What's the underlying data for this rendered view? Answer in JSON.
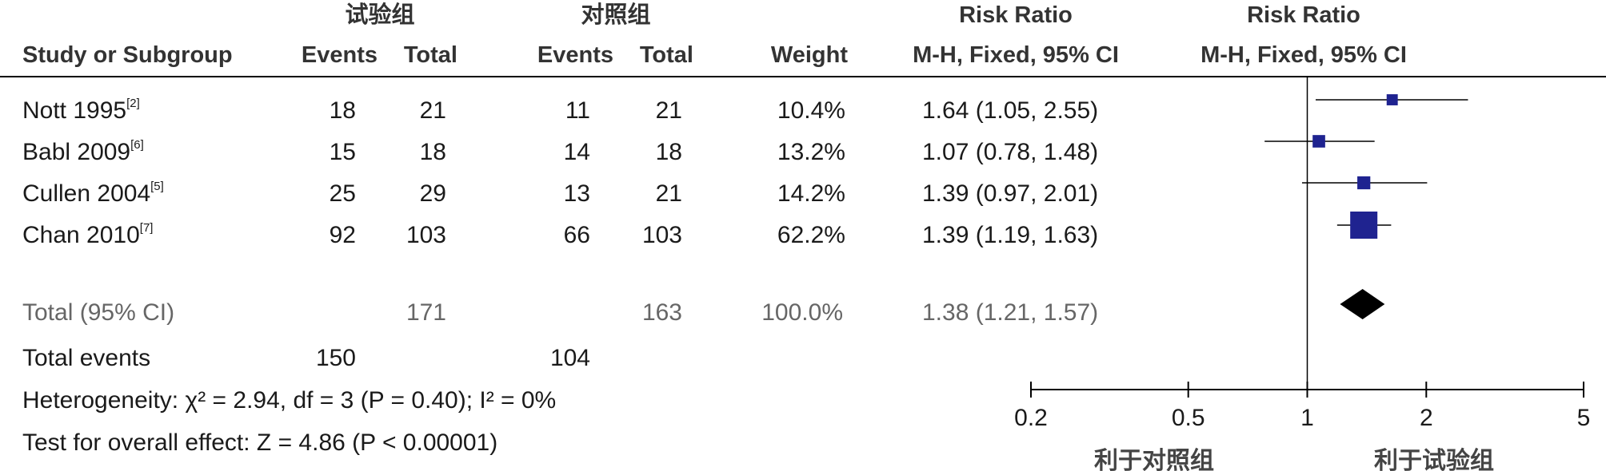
{
  "header": {
    "exp_group": "试验组",
    "ctrl_group": "对照组",
    "rr_col": "Risk Ratio",
    "rr_plot": "Risk Ratio",
    "study": "Study or Subgroup",
    "events_exp": "Events",
    "total_exp": "Total",
    "events_ctrl": "Events",
    "total_ctrl": "Total",
    "weight": "Weight",
    "method_col": "M-H, Fixed, 95% CI",
    "method_plot": "M-H, Fixed, 95% CI"
  },
  "studies": [
    {
      "name": "Nott 1995",
      "ref": "[2]",
      "e1": "18",
      "n1": "21",
      "e2": "11",
      "n2": "21",
      "weight": "10.4%",
      "rr_text": "1.64 (1.05, 2.55)"
    },
    {
      "name": "Babl 2009",
      "ref": "[6]",
      "e1": "15",
      "n1": "18",
      "e2": "14",
      "n2": "18",
      "weight": "13.2%",
      "rr_text": "1.07 (0.78, 1.48)"
    },
    {
      "name": "Cullen 2004",
      "ref": "[5]",
      "e1": "25",
      "n1": "29",
      "e2": "13",
      "n2": "21",
      "weight": "14.2%",
      "rr_text": "1.39 (0.97, 2.01)"
    },
    {
      "name": "Chan 2010",
      "ref": "[7]",
      "e1": "92",
      "n1": "103",
      "e2": "66",
      "n2": "103",
      "weight": "62.2%",
      "rr_text": "1.39 (1.19, 1.63)"
    }
  ],
  "total": {
    "label": "Total (95% CI)",
    "n1": "171",
    "n2": "163",
    "weight": "100.0%",
    "rr_text": "1.38 (1.21, 1.57)"
  },
  "total_events": {
    "label": "Total events",
    "e1": "150",
    "e2": "104"
  },
  "heterogeneity": "Heterogeneity: χ² = 2.94, df = 3 (P = 0.40); I² = 0%",
  "overall_effect": "Test for overall effect: Z = 4.86 (P < 0.00001)",
  "axis": {
    "favours_ctrl": "利于对照组",
    "favours_exp": "利于试验组"
  },
  "chart_data": {
    "type": "forest",
    "x_scale": "log",
    "xlim": [
      0.2,
      5
    ],
    "xticks": [
      0.2,
      0.5,
      1,
      2,
      5
    ],
    "xtick_labels": [
      "0.2",
      "0.5",
      "1",
      "2",
      "5"
    ],
    "reference_line": 1,
    "points": [
      {
        "study": "Nott 1995",
        "rr": 1.64,
        "lo": 1.05,
        "hi": 2.55,
        "weight": 10.4
      },
      {
        "study": "Babl 2009",
        "rr": 1.07,
        "lo": 0.78,
        "hi": 1.48,
        "weight": 13.2
      },
      {
        "study": "Cullen 2004",
        "rr": 1.39,
        "lo": 0.97,
        "hi": 2.01,
        "weight": 14.2
      },
      {
        "study": "Chan 2010",
        "rr": 1.39,
        "lo": 1.19,
        "hi": 1.63,
        "weight": 62.2
      }
    ],
    "pooled": {
      "rr": 1.38,
      "lo": 1.21,
      "hi": 1.57
    },
    "colors": {
      "study_marker": "#1f2390",
      "pooled_marker": "#000000",
      "lines": "#000000"
    }
  }
}
